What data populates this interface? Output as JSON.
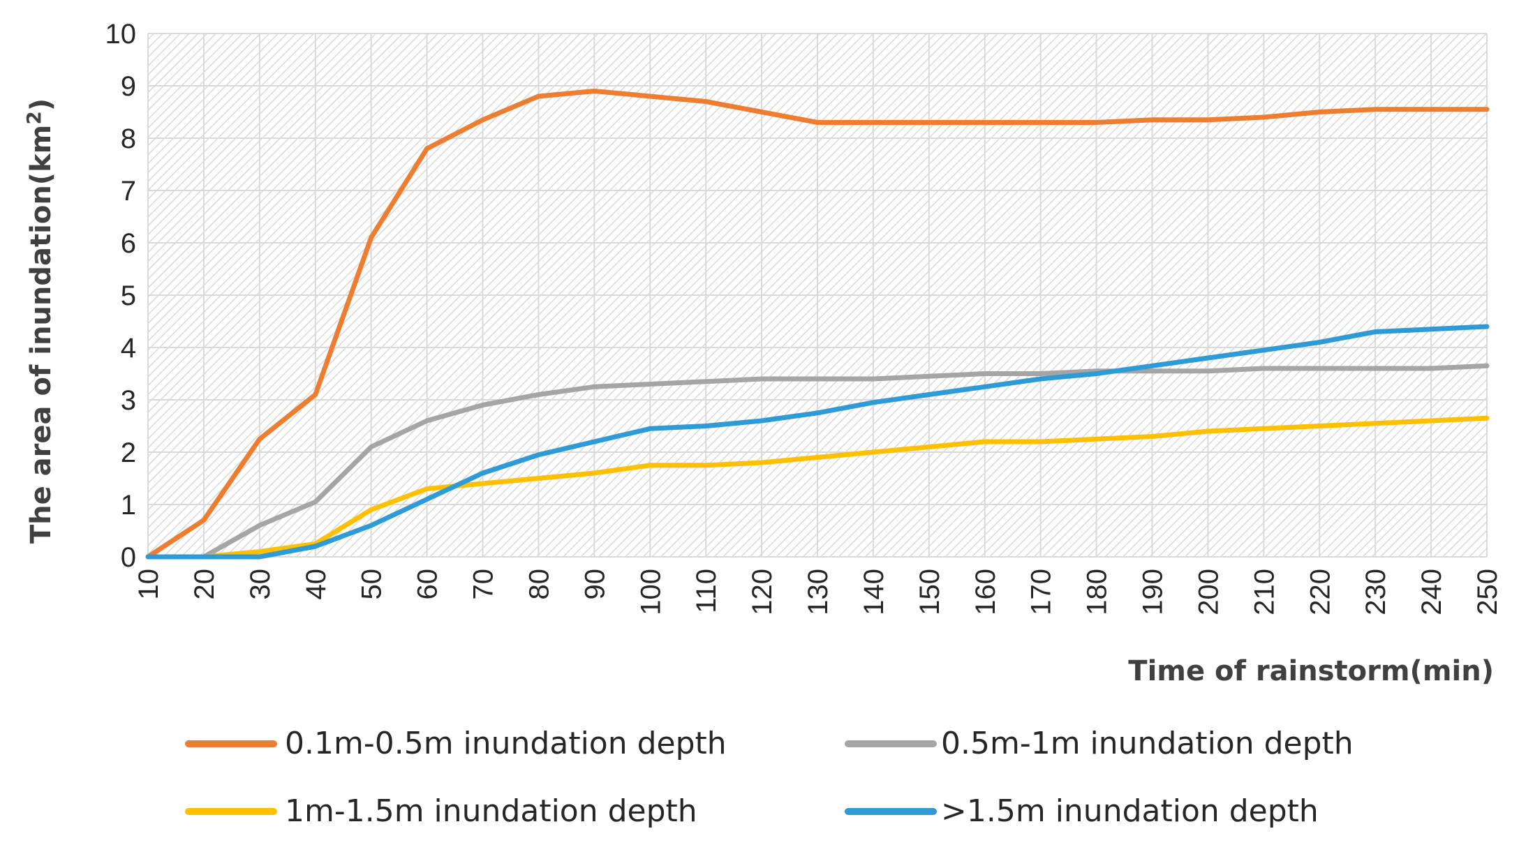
{
  "chart_data": {
    "type": "line",
    "title": "",
    "xlabel": "Time of rainstorm(min)",
    "ylabel_main": "The area of inundation(km",
    "ylabel_sup": "2",
    "ylabel_close": ")",
    "x": [
      10,
      20,
      30,
      40,
      50,
      60,
      70,
      80,
      90,
      100,
      110,
      120,
      130,
      140,
      150,
      160,
      170,
      180,
      190,
      200,
      210,
      220,
      230,
      240,
      250
    ],
    "x_tick_labels": [
      "10",
      "20",
      "30",
      "40",
      "50",
      "60",
      "70",
      "80",
      "90",
      "100",
      "110",
      "120",
      "130",
      "140",
      "150",
      "160",
      "170",
      "180",
      "190",
      "200",
      "210",
      "220",
      "230",
      "240",
      "250"
    ],
    "ylim": [
      0,
      10
    ],
    "y_tick_labels": [
      "0",
      "1",
      "2",
      "3",
      "4",
      "5",
      "6",
      "7",
      "8",
      "9",
      "10"
    ],
    "grid": true,
    "legend_position": "bottom",
    "series": [
      {
        "name": "0.1m-0.5m inundation depth",
        "color": "#ED7D31",
        "values": [
          0,
          0.7,
          2.25,
          3.1,
          6.1,
          7.8,
          8.35,
          8.8,
          8.9,
          8.8,
          8.7,
          8.5,
          8.3,
          8.3,
          8.3,
          8.3,
          8.3,
          8.3,
          8.35,
          8.35,
          8.4,
          8.5,
          8.55,
          8.55,
          8.55
        ]
      },
      {
        "name": "0.5m-1m inundation depth",
        "color": "#A5A5A5",
        "values": [
          0,
          0,
          0.6,
          1.05,
          2.1,
          2.6,
          2.9,
          3.1,
          3.25,
          3.3,
          3.35,
          3.4,
          3.4,
          3.4,
          3.45,
          3.5,
          3.5,
          3.55,
          3.55,
          3.55,
          3.6,
          3.6,
          3.6,
          3.6,
          3.65
        ]
      },
      {
        "name": "1m-1.5m inundation depth",
        "color": "#FFC000",
        "values": [
          0,
          0,
          0.1,
          0.25,
          0.9,
          1.3,
          1.4,
          1.5,
          1.6,
          1.75,
          1.75,
          1.8,
          1.9,
          2.0,
          2.1,
          2.2,
          2.2,
          2.25,
          2.3,
          2.4,
          2.45,
          2.5,
          2.55,
          2.6,
          2.65
        ]
      },
      {
        "name": ">1.5m inundation depth",
        "color": "#2E9BD6",
        "values": [
          0,
          0,
          0,
          0.2,
          0.6,
          1.1,
          1.6,
          1.95,
          2.2,
          2.45,
          2.5,
          2.6,
          2.75,
          2.95,
          3.1,
          3.25,
          3.4,
          3.5,
          3.65,
          3.8,
          3.95,
          4.1,
          4.3,
          4.35,
          4.4
        ]
      }
    ]
  }
}
